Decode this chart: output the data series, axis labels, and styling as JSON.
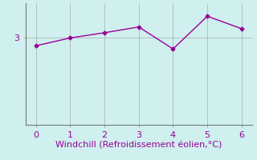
{
  "x": [
    0,
    1,
    2,
    3,
    4,
    5,
    6
  ],
  "y": [
    2.73,
    3.0,
    3.18,
    3.38,
    2.62,
    3.75,
    3.32
  ],
  "line_color": "#990099",
  "marker": "D",
  "marker_size": 2.5,
  "background_color": "#cff0ee",
  "grid_color": "#aaaaaa",
  "xlabel": "Windchill (Refroidissement éolien,°C)",
  "xlabel_color": "#990099",
  "ylabel_tick": "3",
  "xlim": [
    -0.3,
    6.3
  ],
  "ylim": [
    0.0,
    4.2
  ],
  "xticks": [
    0,
    1,
    2,
    3,
    4,
    5,
    6
  ],
  "yticks": [
    3.0
  ],
  "tick_color": "#990099",
  "axis_color": "#777777",
  "line_width": 1.0,
  "font_size": 8,
  "xlabel_fontsize": 8
}
